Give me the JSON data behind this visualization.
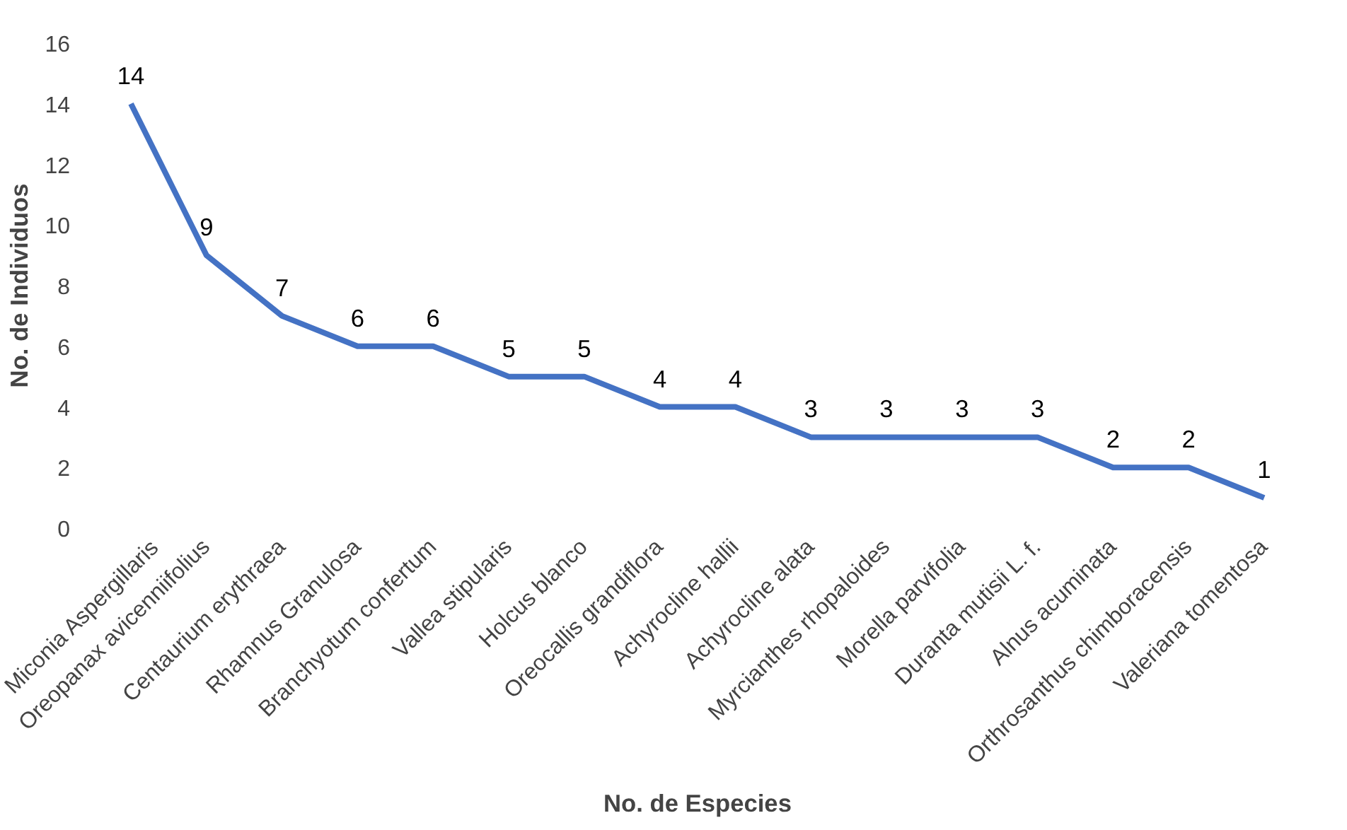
{
  "chart_data": {
    "type": "line",
    "xlabel": "No. de Especies",
    "ylabel": "No. de Individuos",
    "categories": [
      "Miconia Aspergillaris",
      "Oreopanax avicenniifolius",
      "Centaurium erythraea",
      "Rhamnus Granulosa",
      "Branchyotum confertum",
      "Vallea stipularis",
      "Holcus blanco",
      "Oreocallis grandiflora",
      "Achyrocline hallii",
      "Achyrocline alata",
      "Myrcianthes rhopaloides",
      "Morella parvifolia",
      "Duranta mutisii L. f.",
      "Alnus acuminata",
      "Orthrosanthus chimboracensis",
      "Valeriana tomentosa"
    ],
    "values": [
      14,
      9,
      7,
      6,
      6,
      5,
      5,
      4,
      4,
      3,
      3,
      3,
      3,
      2,
      2,
      1
    ],
    "color": "#4472c4",
    "ylim": [
      0,
      16
    ],
    "yticks": [
      0,
      2,
      4,
      6,
      8,
      10,
      12,
      14,
      16
    ],
    "grid": false,
    "data_labels": true,
    "marker": "none",
    "line_style": "solid"
  }
}
